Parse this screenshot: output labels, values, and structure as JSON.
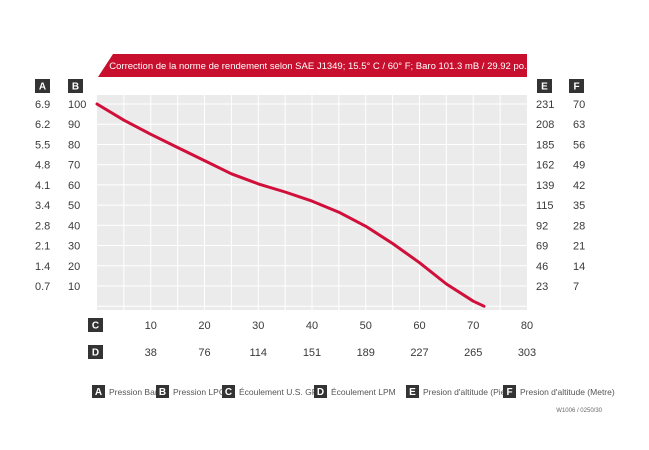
{
  "banner": {
    "text": "Correction de la norme de rendement selon SAE J1349;  15.5° C  / 60° F;  Baro 101.3 mB / 29.92 po.",
    "color": "#c8102e"
  },
  "colors": {
    "curve": "#d0103a",
    "plot_bg": "#ebebeb",
    "badge_bg": "#333333"
  },
  "axis_badges": {
    "A": "A",
    "B": "B",
    "C": "C",
    "D": "D",
    "E": "E",
    "F": "F"
  },
  "chart_data": {
    "type": "line",
    "series": [
      {
        "x": [
          0,
          5,
          10,
          15,
          20,
          25,
          30,
          35,
          40,
          45,
          50,
          55,
          60,
          65,
          70,
          72
        ],
        "y": [
          100,
          92,
          85,
          78.5,
          72,
          65.5,
          60.5,
          56.5,
          52,
          46.5,
          39.5,
          31,
          21.5,
          11,
          2.5,
          0
        ]
      }
    ],
    "xlim": [
      0,
      80
    ],
    "ylim": [
      0,
      100
    ],
    "grid": true,
    "axes": {
      "A": {
        "position": "left-outer",
        "ticks": [
          "6.9",
          "6.2",
          "5.5",
          "4.8",
          "4.1",
          "3.4",
          "2.8",
          "2.1",
          "1.4",
          "0.7"
        ]
      },
      "B": {
        "position": "left-inner",
        "ticks": [
          "100",
          "90",
          "80",
          "70",
          "60",
          "50",
          "40",
          "30",
          "20",
          "10"
        ]
      },
      "E": {
        "position": "right-inner",
        "ticks": [
          "231",
          "208",
          "185",
          "162",
          "139",
          "115",
          "92",
          "69",
          "46",
          "23"
        ]
      },
      "F": {
        "position": "right-outer",
        "ticks": [
          "70",
          "63",
          "56",
          "49",
          "42",
          "35",
          "28",
          "21",
          "14",
          "7"
        ]
      },
      "C": {
        "position": "bottom-1",
        "ticks": [
          "10",
          "20",
          "30",
          "40",
          "50",
          "60",
          "70",
          "80"
        ]
      },
      "D": {
        "position": "bottom-2",
        "ticks": [
          "38",
          "76",
          "114",
          "151",
          "189",
          "227",
          "265",
          "303"
        ]
      }
    },
    "legend": [
      {
        "key": "A",
        "label": "Pression Bar"
      },
      {
        "key": "B",
        "label": "Pression LPC"
      },
      {
        "key": "C",
        "label": "Écoulement U.S. GPM"
      },
      {
        "key": "D",
        "label": "Écoulement LPM"
      },
      {
        "key": "E",
        "label": "Presion d'altitude (Pied)"
      },
      {
        "key": "F",
        "label": "Presion d'altitude (Metre)"
      }
    ]
  },
  "footnote": "W1006 / 0250/30"
}
